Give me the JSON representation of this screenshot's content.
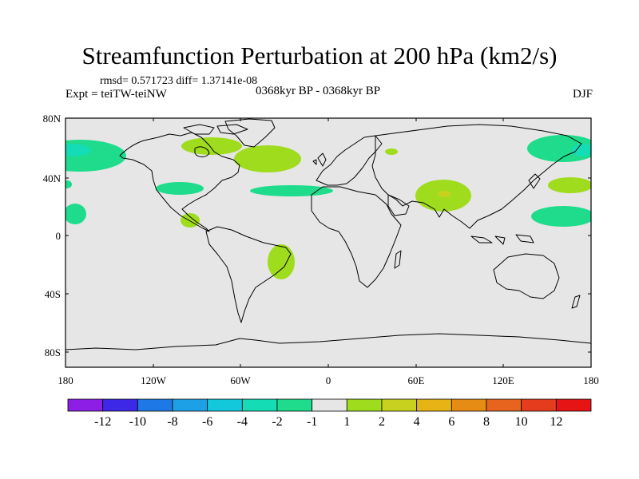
{
  "title": "Streamfunction Perturbation at 200 hPa (km2/s)",
  "stats": "rmsd= 0.571723 diff= 1.37141e-08",
  "experiment": "Expt = teiTW-teiNW",
  "period": "0368kyr BP - 0368kyr BP",
  "season": "DJF",
  "lat_ticks": [
    "80N",
    "40N",
    "0",
    "40S",
    "80S"
  ],
  "lon_ticks": [
    "180",
    "120W",
    "60W",
    "0",
    "60E",
    "120E",
    "180"
  ],
  "colorbar": {
    "labels": [
      "-12",
      "-10",
      "-8",
      "-6",
      "-4",
      "-2",
      "-1",
      "1",
      "2",
      "4",
      "6",
      "8",
      "10",
      "12"
    ],
    "colors": [
      "#8c1ee6",
      "#3c28e6",
      "#1e78e6",
      "#1ea0e6",
      "#14c8dc",
      "#14dcb4",
      "#1edc8c",
      "#e6e6e6",
      "#a0dc1e",
      "#c8d21e",
      "#e6b414",
      "#e68c14",
      "#e6641e",
      "#e63c1e",
      "#e61414"
    ]
  },
  "anomalies": [
    {
      "region": "north-pacific-west",
      "value_class": "-2"
    },
    {
      "region": "north-pacific-east",
      "value_class": "-2"
    },
    {
      "region": "east-asia-west-pacific",
      "value_class": "-2"
    },
    {
      "region": "north-america-west-atlantic",
      "value_class": "2"
    },
    {
      "region": "north-atlantic",
      "value_class": "-2"
    },
    {
      "region": "south-asia",
      "value_class": "2"
    },
    {
      "region": "south-atlantic-brazil",
      "value_class": "2"
    }
  ]
}
